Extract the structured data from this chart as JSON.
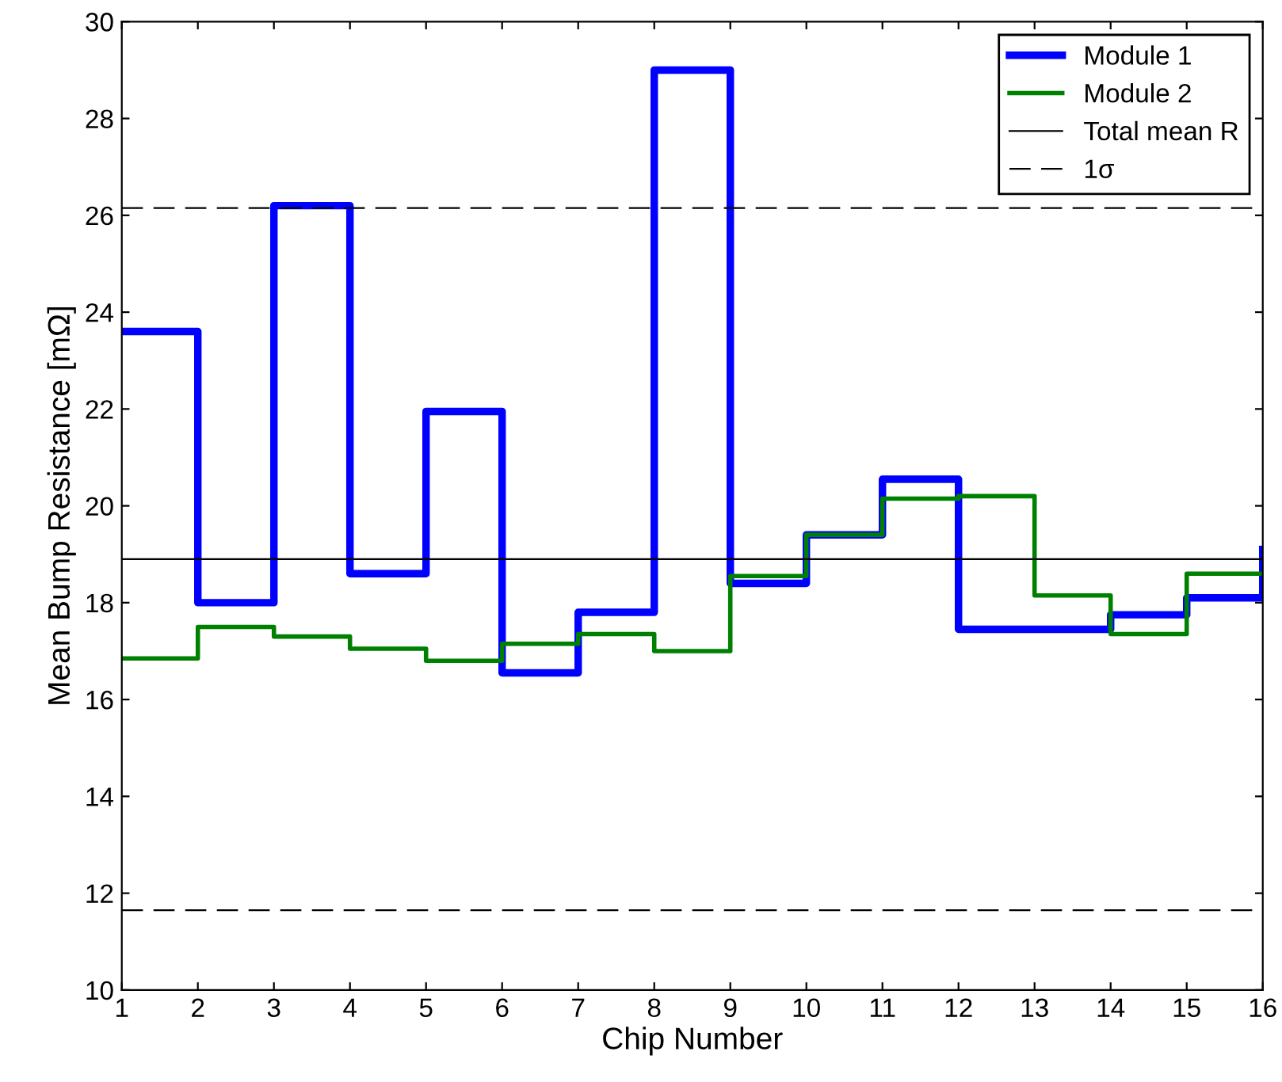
{
  "chart_data": {
    "type": "step",
    "xlabel": "Chip Number",
    "ylabel": "Mean Bump Resistance [mΩ]",
    "x": [
      1,
      2,
      3,
      4,
      5,
      6,
      7,
      8,
      9,
      10,
      11,
      12,
      13,
      14,
      15,
      16
    ],
    "series": [
      {
        "name": "Module 1",
        "color": "#0000ff",
        "values": [
          23.6,
          18.0,
          26.2,
          18.6,
          21.95,
          16.55,
          17.8,
          29.0,
          18.4,
          19.4,
          20.55,
          17.45,
          17.45,
          17.75,
          18.1,
          19.1
        ]
      },
      {
        "name": "Module 2",
        "color": "#008000",
        "values": [
          16.85,
          17.5,
          17.3,
          17.05,
          16.8,
          17.15,
          17.35,
          17.0,
          18.55,
          19.4,
          20.15,
          20.2,
          18.15,
          17.35,
          18.6,
          18.6
        ]
      }
    ],
    "ref_lines": [
      {
        "axis": "y",
        "value": 18.9,
        "label": "Total mean R",
        "color": "#000000",
        "line_style": "solid"
      },
      {
        "axis": "y",
        "value": 26.15,
        "label": "1σ",
        "color": "#000000",
        "line_style": "dashed"
      },
      {
        "axis": "y",
        "value": 11.65,
        "label": null,
        "color": "#000000",
        "line_style": "dashed"
      }
    ],
    "xlim": [
      1,
      16
    ],
    "xticks": [
      1,
      2,
      3,
      4,
      5,
      6,
      7,
      8,
      9,
      10,
      11,
      12,
      13,
      14,
      15,
      16
    ],
    "ylim": [
      10,
      30
    ],
    "yticks": [
      10,
      12,
      14,
      16,
      18,
      20,
      22,
      24,
      26,
      28,
      30
    ],
    "grid": false,
    "legend": "top right"
  }
}
